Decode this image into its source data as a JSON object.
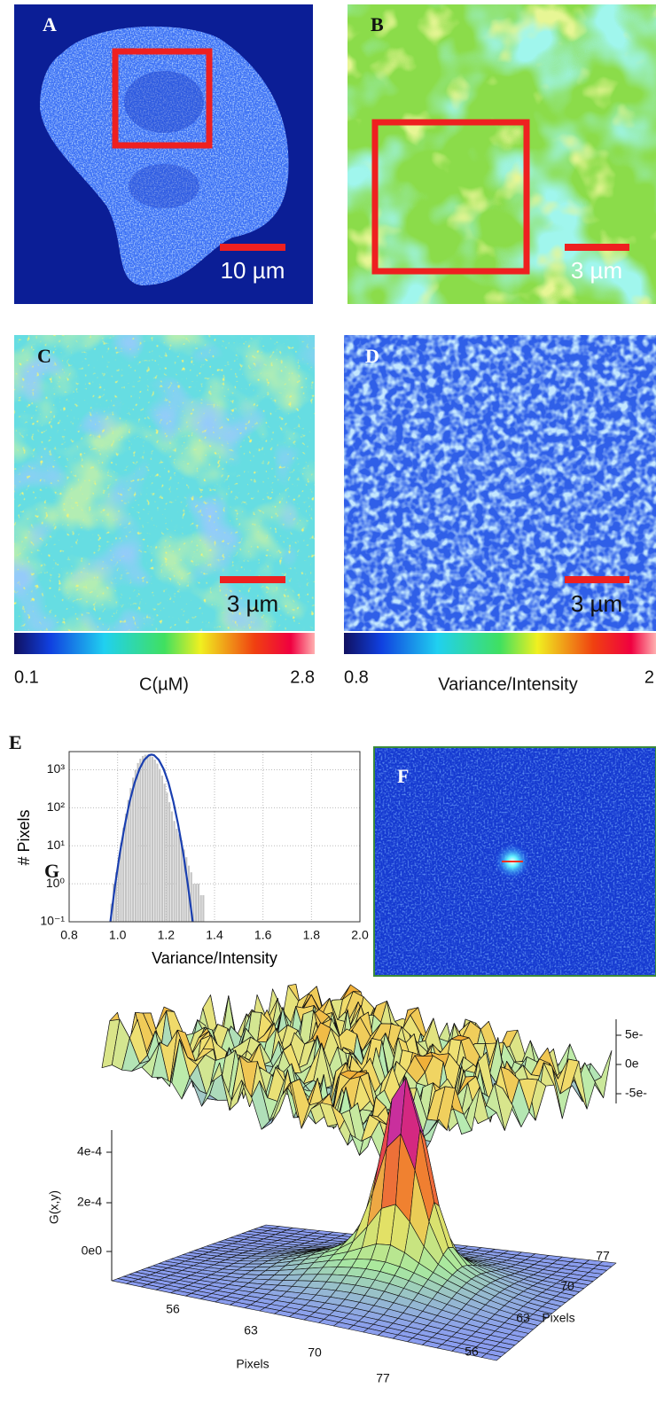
{
  "panel_a": {
    "label": "A",
    "scale_label": "10 µm"
  },
  "panel_b": {
    "label": "B",
    "scale_label": "3 µm"
  },
  "panel_c": {
    "label": "C",
    "scale_label": "3 µm",
    "colorbar_min": "0.1",
    "colorbar_title": "C(µM)",
    "colorbar_max": "2.8"
  },
  "panel_d": {
    "label": "D",
    "scale_label": "3 µm",
    "colorbar_min": "0.8",
    "colorbar_title": "Variance/Intensity",
    "colorbar_max": "2"
  },
  "panel_e": {
    "label": "E"
  },
  "panel_f": {
    "label": "F"
  },
  "panel_g": {
    "label": "G",
    "z_label": "G(x,y)",
    "z_ticks": [
      "4e-4",
      "2e-4",
      "0e0"
    ],
    "x_ticks": [
      "56",
      "63",
      "70",
      "77"
    ],
    "x_label": "Pixels",
    "y_ticks": [
      "56",
      "63",
      "70",
      "77"
    ],
    "y_label": "Pixels",
    "top_ticks": [
      "5e-",
      "0e",
      "-5e-"
    ]
  },
  "chart_data": {
    "type": "histogram",
    "x_label": "Variance/Intensity",
    "y_label": "# Pixels",
    "bins": [
      0.97,
      0.98,
      0.99,
      1.0,
      1.01,
      1.02,
      1.03,
      1.04,
      1.05,
      1.06,
      1.07,
      1.08,
      1.09,
      1.1,
      1.11,
      1.12,
      1.13,
      1.14,
      1.15,
      1.16,
      1.17,
      1.18,
      1.19,
      1.2,
      1.21,
      1.22,
      1.23,
      1.24,
      1.25,
      1.26,
      1.27,
      1.28,
      1.29,
      1.3,
      1.31,
      1.32,
      1.33,
      1.34,
      1.35,
      1.36
    ],
    "counts": [
      0.3,
      1,
      2,
      5,
      12,
      30,
      70,
      160,
      330,
      620,
      1000,
      1500,
      1950,
      2300,
      2480,
      2500,
      2420,
      2200,
      1850,
      1450,
      1050,
      700,
      430,
      250,
      140,
      80,
      45,
      28,
      20,
      14,
      8,
      5,
      3,
      2,
      1,
      1,
      1,
      0.5,
      0.5
    ],
    "color": "#c4c4c4",
    "fit": {
      "x": [
        0.97,
        0.99,
        1.01,
        1.03,
        1.05,
        1.07,
        1.09,
        1.11,
        1.13,
        1.14,
        1.15,
        1.17,
        1.19,
        1.21,
        1.23,
        1.25,
        1.27,
        1.29,
        1.31
      ],
      "values": [
        0.1,
        0.95,
        6.8,
        36,
        147,
        452,
        1043,
        1824,
        2414,
        2500,
        2414,
        1824,
        1043,
        452,
        147,
        36,
        6.8,
        0.95,
        0.1
      ],
      "color": "#1a3fb0"
    },
    "xlim": [
      0.8,
      2.0
    ],
    "ylim": [
      0.1,
      3000
    ],
    "xticks": [
      0.8,
      {
        "value": 1,
        "label": "1.0"
      },
      1.2,
      1.4,
      1.6,
      1.8,
      {
        "value": 2,
        "label": "2.0"
      }
    ],
    "yticks": [
      {
        "value": 0.1,
        "label": "10⁻¹"
      },
      {
        "value": 1,
        "label": "10⁰"
      },
      {
        "value": 10,
        "label": "10¹"
      },
      {
        "value": 100,
        "label": "10²"
      },
      {
        "value": 1000,
        "label": "10³"
      }
    ],
    "log_y": true,
    "grid": true
  }
}
